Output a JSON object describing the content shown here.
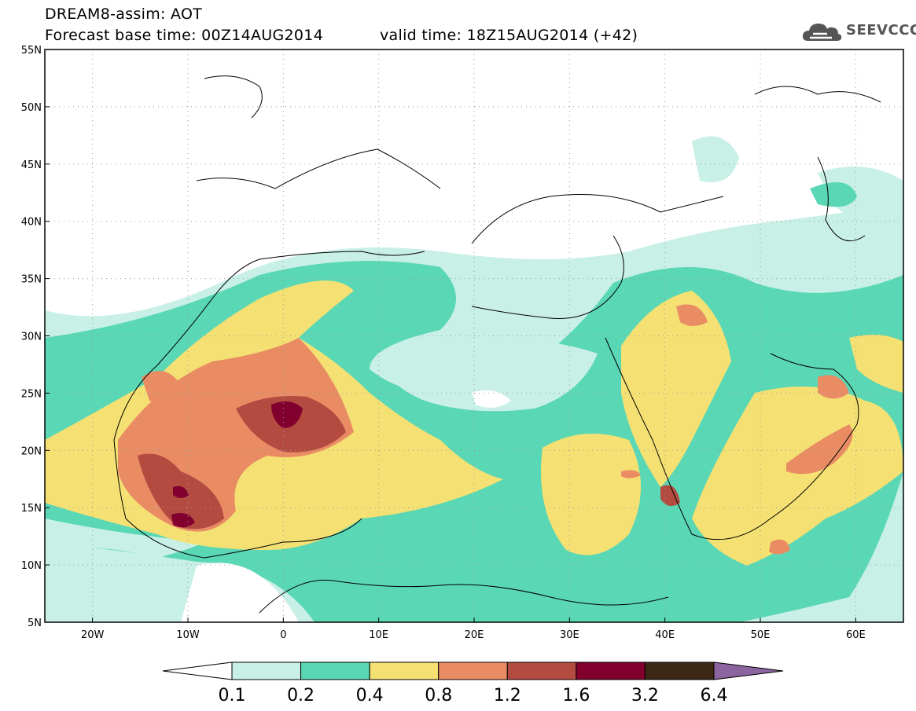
{
  "header": {
    "line1": "DREAM8-assim: AOT",
    "line2_left": "Forecast base time: 00Z14AUG2014",
    "line2_right": "valid time: 18Z15AUG2014 (+42)"
  },
  "logo": {
    "text": "SEEVCCC",
    "icon": "cloud-icon"
  },
  "map": {
    "lon_range": [
      -25,
      65
    ],
    "lat_range": [
      5,
      55
    ],
    "lat_ticks": [
      "55N",
      "50N",
      "45N",
      "40N",
      "35N",
      "30N",
      "25N",
      "20N",
      "15N",
      "10N",
      "5N"
    ],
    "lon_ticks": [
      "20W",
      "10W",
      "0",
      "10E",
      "20E",
      "30E",
      "40E",
      "50E",
      "60E"
    ]
  },
  "colorbar": {
    "labels": [
      "0.1",
      "0.2",
      "0.4",
      "0.8",
      "1.2",
      "1.6",
      "3.2",
      "6.4"
    ],
    "colors": [
      "#c8f0e6",
      "#5ad7b4",
      "#f5e173",
      "#e98c64",
      "#b44b41",
      "#82002d",
      "#3c2814"
    ],
    "under_color": "#ffffff",
    "over_color": "#8c64a0"
  },
  "palette": {
    "c1": "#c8f0e6",
    "c2": "#5ad7b4",
    "c3": "#f5e173",
    "c4": "#e98c64",
    "c5": "#b44b41",
    "c6": "#82002d"
  }
}
